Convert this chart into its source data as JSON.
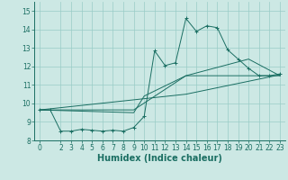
{
  "xlabel": "Humidex (Indice chaleur)",
  "bg_color": "#cce8e4",
  "grid_color": "#99ccc6",
  "line_color": "#1a6e62",
  "xlim": [
    -0.5,
    23.5
  ],
  "ylim": [
    8,
    15.5
  ],
  "yticks": [
    8,
    9,
    10,
    11,
    12,
    13,
    14,
    15
  ],
  "xticks": [
    0,
    2,
    3,
    4,
    5,
    6,
    7,
    8,
    9,
    10,
    11,
    12,
    13,
    14,
    15,
    16,
    17,
    18,
    19,
    20,
    21,
    22,
    23
  ],
  "line1_x": [
    0,
    1,
    2,
    3,
    4,
    5,
    6,
    7,
    8,
    9,
    10,
    11,
    12,
    13,
    14,
    15,
    16,
    17,
    18,
    19,
    20,
    21,
    22,
    23
  ],
  "line1_y": [
    9.65,
    9.65,
    8.5,
    8.5,
    8.6,
    8.55,
    8.5,
    8.55,
    8.5,
    8.7,
    9.3,
    12.85,
    12.05,
    12.2,
    14.6,
    13.9,
    14.2,
    14.1,
    12.9,
    12.4,
    11.9,
    11.5,
    11.5,
    11.6
  ],
  "line2_x": [
    0,
    9,
    10,
    14,
    20,
    23
  ],
  "line2_y": [
    9.65,
    9.5,
    10.4,
    11.5,
    12.4,
    11.5
  ],
  "line3_x": [
    0,
    9,
    14,
    23
  ],
  "line3_y": [
    9.65,
    9.65,
    11.5,
    11.5
  ],
  "line4_x": [
    0,
    14,
    23
  ],
  "line4_y": [
    9.65,
    10.5,
    11.55
  ],
  "tick_label_fontsize": 5.5,
  "xlabel_fontsize": 7
}
